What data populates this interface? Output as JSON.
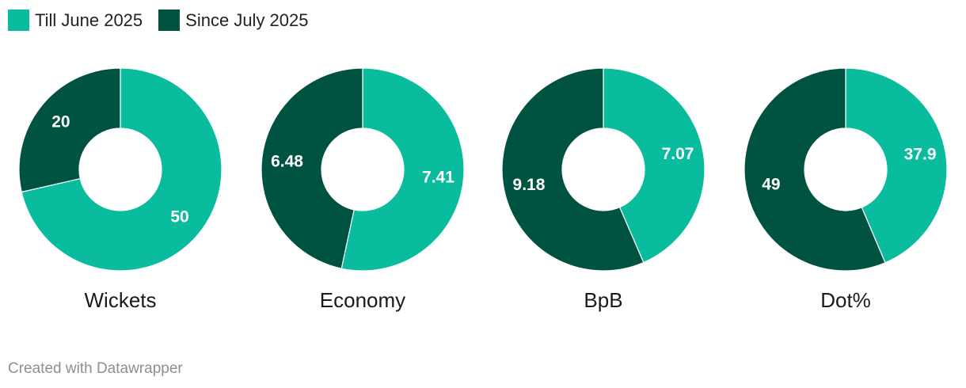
{
  "chart_data": {
    "type": "pie",
    "style": "donut",
    "legend_position": "top-left",
    "series": [
      {
        "name": "Till June 2025",
        "color": "#0abc9e"
      },
      {
        "name": "Since July 2025",
        "color": "#005340"
      }
    ],
    "charts": [
      {
        "label": "Wickets",
        "values": [
          50,
          20
        ],
        "value_labels": [
          "50",
          "20"
        ]
      },
      {
        "label": "Economy",
        "values": [
          7.41,
          6.48
        ],
        "value_labels": [
          "7.41",
          "6.48"
        ]
      },
      {
        "label": "BpB",
        "values": [
          7.07,
          9.18
        ],
        "value_labels": [
          "7.07",
          "9.18"
        ]
      },
      {
        "label": "Dot%",
        "values": [
          37.9,
          49
        ],
        "value_labels": [
          "37.9",
          "49"
        ]
      }
    ]
  },
  "footer": {
    "credit": "Created with Datawrapper"
  }
}
